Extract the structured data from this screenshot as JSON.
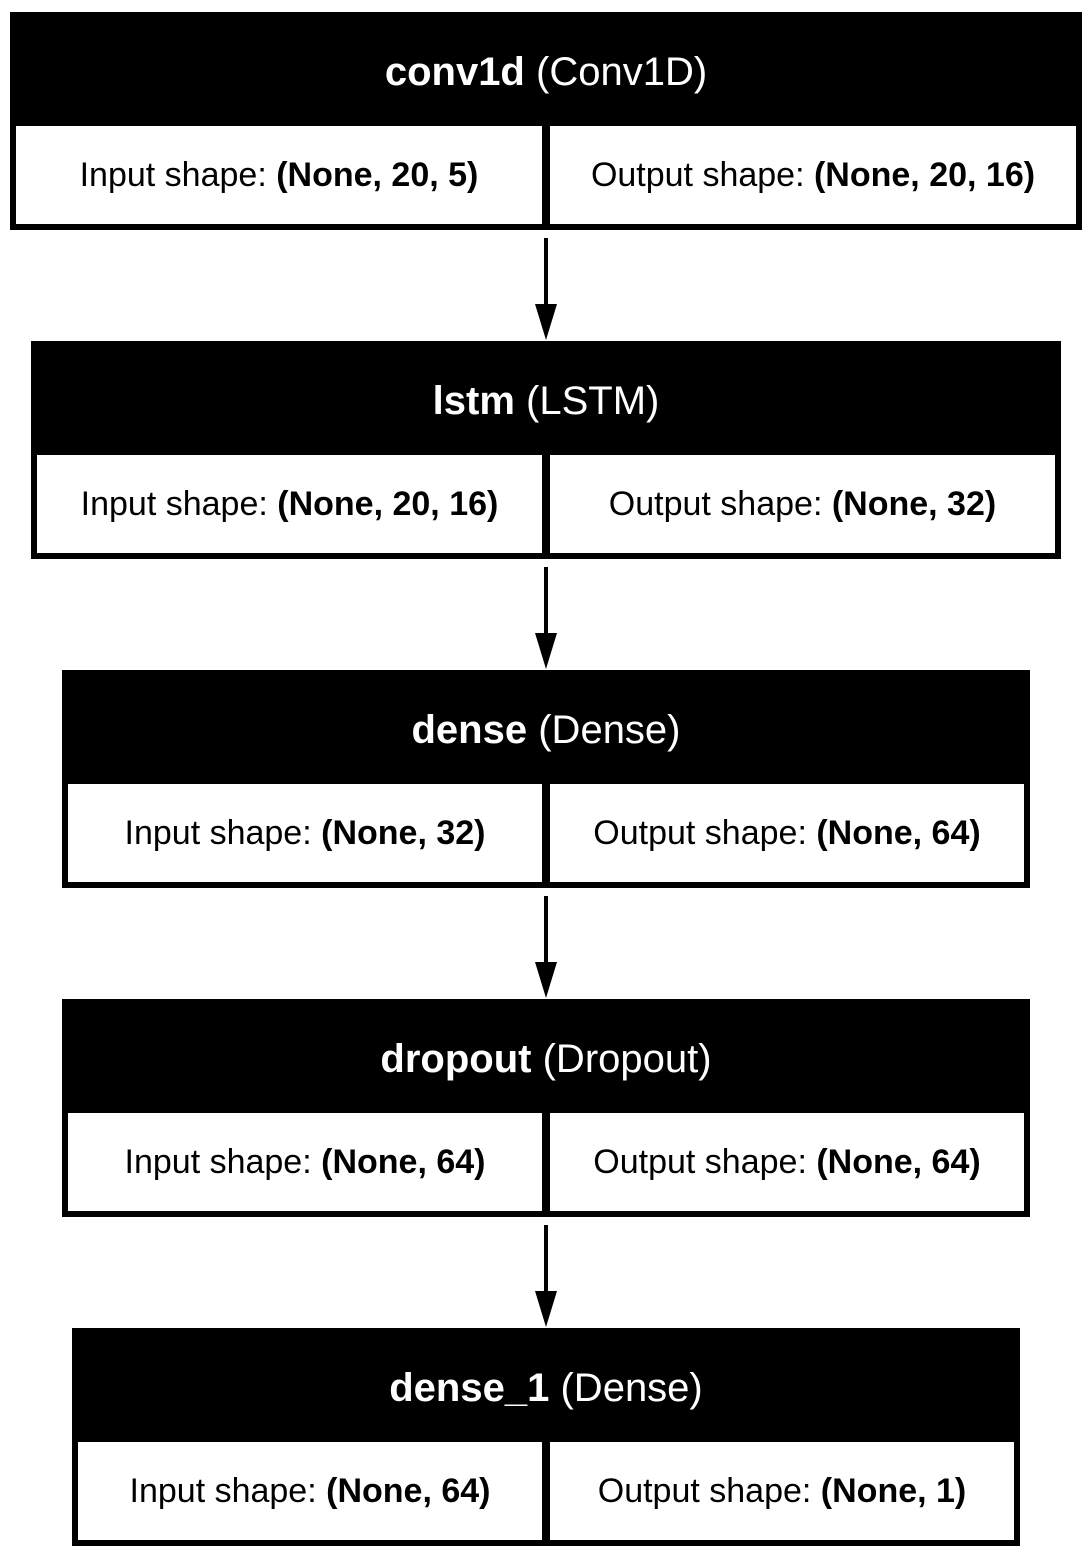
{
  "labels": {
    "input_prefix": "Input shape: ",
    "output_prefix": "Output shape: "
  },
  "layers": [
    {
      "name": "conv1d",
      "type": "(Conv1D)",
      "input_shape": "(None, 20, 5)",
      "output_shape": "(None, 20, 16)"
    },
    {
      "name": "lstm",
      "type": "(LSTM)",
      "input_shape": "(None, 20, 16)",
      "output_shape": "(None, 32)"
    },
    {
      "name": "dense",
      "type": "(Dense)",
      "input_shape": "(None, 32)",
      "output_shape": "(None, 64)"
    },
    {
      "name": "dropout",
      "type": "(Dropout)",
      "input_shape": "(None, 64)",
      "output_shape": "(None, 64)"
    },
    {
      "name": "dense_1",
      "type": "(Dense)",
      "input_shape": "(None, 64)",
      "output_shape": "(None, 1)"
    }
  ],
  "colors": {
    "header_bg": "#000000",
    "header_text": "#ffffff",
    "cell_bg": "#ffffff",
    "border": "#000000",
    "arrow": "#000000"
  }
}
